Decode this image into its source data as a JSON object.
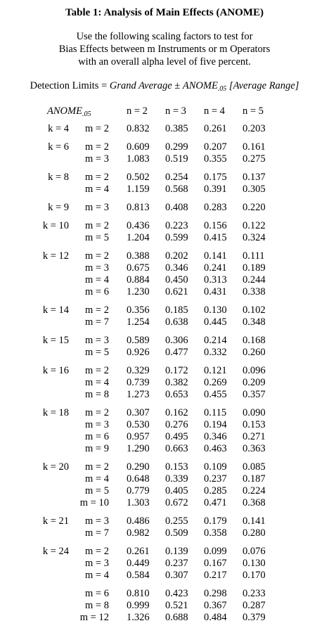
{
  "title": "Table 1: Analysis of Main Effects (ANOME)",
  "intro": [
    "Use the following scaling factors to test for",
    "Bias Effects between m Instruments or m Operators",
    "with an overall alpha level of five percent."
  ],
  "formula": {
    "lhs": "Detection Limits",
    "eq": "=",
    "term1": "Grand Average",
    "pm": "±",
    "term2": "ANOME",
    "term2_sub": ".05",
    "term3": "[Average Range]"
  },
  "table": {
    "corner": "ANOME",
    "corner_sub": ".05",
    "columns": [
      "n = 2",
      "n = 3",
      "n = 4",
      "n = 5"
    ],
    "groups": [
      {
        "k": "k = 4",
        "rows": [
          {
            "m": "m = 2",
            "values": [
              "0.832",
              "0.385",
              "0.261",
              "0.203"
            ]
          }
        ]
      },
      {
        "k": "k = 6",
        "rows": [
          {
            "m": "m = 2",
            "values": [
              "0.609",
              "0.299",
              "0.207",
              "0.161"
            ]
          },
          {
            "m": "m = 3",
            "values": [
              "1.083",
              "0.519",
              "0.355",
              "0.275"
            ]
          }
        ]
      },
      {
        "k": "k = 8",
        "rows": [
          {
            "m": "m = 2",
            "values": [
              "0.502",
              "0.254",
              "0.175",
              "0.137"
            ]
          },
          {
            "m": "m = 4",
            "values": [
              "1.159",
              "0.568",
              "0.391",
              "0.305"
            ]
          }
        ]
      },
      {
        "k": "k = 9",
        "rows": [
          {
            "m": "m = 3",
            "values": [
              "0.813",
              "0.408",
              "0.283",
              "0.220"
            ]
          }
        ]
      },
      {
        "k": "k = 10",
        "rows": [
          {
            "m": "m = 2",
            "values": [
              "0.436",
              "0.223",
              "0.156",
              "0.122"
            ]
          },
          {
            "m": "m = 5",
            "values": [
              "1.204",
              "0.599",
              "0.415",
              "0.324"
            ]
          }
        ]
      },
      {
        "k": "k = 12",
        "rows": [
          {
            "m": "m = 2",
            "values": [
              "0.388",
              "0.202",
              "0.141",
              "0.111"
            ]
          },
          {
            "m": "m = 3",
            "values": [
              "0.675",
              "0.346",
              "0.241",
              "0.189"
            ]
          },
          {
            "m": "m = 4",
            "values": [
              "0.884",
              "0.450",
              "0.313",
              "0.244"
            ]
          },
          {
            "m": "m = 6",
            "values": [
              "1.230",
              "0.621",
              "0.431",
              "0.338"
            ]
          }
        ]
      },
      {
        "k": "k = 14",
        "rows": [
          {
            "m": "m = 2",
            "values": [
              "0.356",
              "0.185",
              "0.130",
              "0.102"
            ]
          },
          {
            "m": "m = 7",
            "values": [
              "1.254",
              "0.638",
              "0.445",
              "0.348"
            ]
          }
        ]
      },
      {
        "k": "k = 15",
        "rows": [
          {
            "m": "m = 3",
            "values": [
              "0.589",
              "0.306",
              "0.214",
              "0.168"
            ]
          },
          {
            "m": "m = 5",
            "values": [
              "0.926",
              "0.477",
              "0.332",
              "0.260"
            ]
          }
        ]
      },
      {
        "k": "k = 16",
        "rows": [
          {
            "m": "m = 2",
            "values": [
              "0.329",
              "0.172",
              "0.121",
              "0.096"
            ]
          },
          {
            "m": "m = 4",
            "values": [
              "0.739",
              "0.382",
              "0.269",
              "0.209"
            ]
          },
          {
            "m": "m = 8",
            "values": [
              "1.273",
              "0.653",
              "0.455",
              "0.357"
            ]
          }
        ]
      },
      {
        "k": "k = 18",
        "rows": [
          {
            "m": "m = 2",
            "values": [
              "0.307",
              "0.162",
              "0.115",
              "0.090"
            ]
          },
          {
            "m": "m = 3",
            "values": [
              "0.530",
              "0.276",
              "0.194",
              "0.153"
            ]
          },
          {
            "m": "m = 6",
            "values": [
              "0.957",
              "0.495",
              "0.346",
              "0.271"
            ]
          },
          {
            "m": "m = 9",
            "values": [
              "1.290",
              "0.663",
              "0.463",
              "0.363"
            ]
          }
        ]
      },
      {
        "k": "k = 20",
        "rows": [
          {
            "m": "m = 2",
            "values": [
              "0.290",
              "0.153",
              "0.109",
              "0.085"
            ]
          },
          {
            "m": "m = 4",
            "values": [
              "0.648",
              "0.339",
              "0.237",
              "0.187"
            ]
          },
          {
            "m": "m = 5",
            "values": [
              "0.779",
              "0.405",
              "0.285",
              "0.224"
            ]
          },
          {
            "m": "m = 10",
            "values": [
              "1.303",
              "0.672",
              "0.471",
              "0.368"
            ]
          }
        ]
      },
      {
        "k": "k = 21",
        "rows": [
          {
            "m": "m = 3",
            "values": [
              "0.486",
              "0.255",
              "0.179",
              "0.141"
            ]
          },
          {
            "m": "m = 7",
            "values": [
              "0.982",
              "0.509",
              "0.358",
              "0.280"
            ]
          }
        ]
      },
      {
        "k": "k = 24",
        "rows": [
          {
            "m": "m = 2",
            "values": [
              "0.261",
              "0.139",
              "0.099",
              "0.076"
            ]
          },
          {
            "m": "m = 3",
            "values": [
              "0.449",
              "0.237",
              "0.167",
              "0.130"
            ]
          },
          {
            "m": "m = 4",
            "values": [
              "0.584",
              "0.307",
              "0.217",
              "0.170"
            ]
          }
        ]
      },
      {
        "k": null,
        "rows": [
          {
            "m": "m = 6",
            "values": [
              "0.810",
              "0.423",
              "0.298",
              "0.233"
            ]
          },
          {
            "m": "m = 8",
            "values": [
              "0.999",
              "0.521",
              "0.367",
              "0.287"
            ]
          },
          {
            "m": "m = 12",
            "values": [
              "1.326",
              "0.688",
              "0.484",
              "0.379"
            ]
          }
        ]
      }
    ]
  }
}
